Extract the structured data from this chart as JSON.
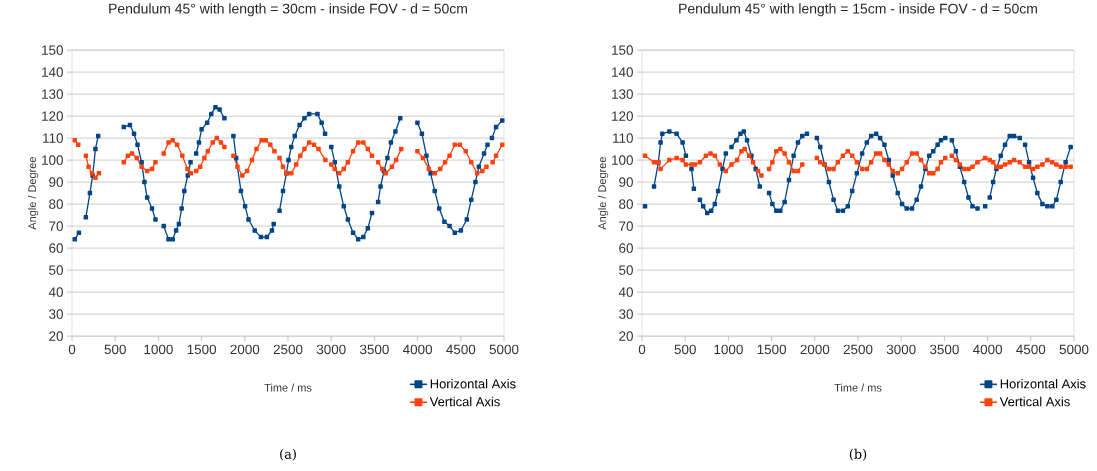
{
  "chart_data": [
    {
      "type": "line",
      "title": "Pendulum 45° with length = 30cm - inside FOV - d = 50cm",
      "xlabel": "Time / ms",
      "ylabel": "Angle / Degree",
      "xlim": [
        0,
        5000
      ],
      "ylim": [
        20,
        150
      ],
      "xticks": [
        0,
        500,
        1000,
        1500,
        2000,
        2500,
        3000,
        3500,
        4000,
        4500,
        5000
      ],
      "yticks": [
        20,
        30,
        40,
        50,
        60,
        70,
        80,
        90,
        100,
        110,
        120,
        130,
        140,
        150
      ],
      "grid": "y",
      "legend": "bottom right",
      "marker": "square",
      "line_style": "solid",
      "annotations": [
        "(a)"
      ],
      "series": [
        {
          "name": "Horizontal Axis",
          "color": "#004586",
          "x": [
            32,
            80,
            120,
            160,
            207,
            239,
            271,
            303,
            450,
            599,
            670,
            718,
            758,
            806,
            838,
            870,
            926,
            966,
            1010,
            1061,
            1117,
            1165,
            1205,
            1237,
            1269,
            1300,
            1340,
            1372,
            1405,
            1437,
            1469,
            1500,
            1564,
            1612,
            1660,
            1708,
            1764,
            1815,
            1868,
            1900,
            1955,
            2003,
            2043,
            2115,
            2187,
            2255,
            2314,
            2334,
            2370,
            2402,
            2442,
            2482,
            2506,
            2538,
            2578,
            2634,
            2690,
            2745,
            2841,
            2889,
            2929,
            2965,
            3001,
            3041,
            3093,
            3145,
            3193,
            3253,
            3312,
            3372,
            3424,
            3472,
            3510,
            3543,
            3571,
            3611,
            3651,
            3691,
            3743,
            3799,
            3900,
            3998,
            4050,
            4102,
            4150,
            4198,
            4250,
            4310,
            4370,
            4430,
            4501,
            4569,
            4621,
            4669,
            4709,
            4769,
            4809,
            4835,
            4860,
            4908,
            4980
          ],
          "values": [
            64,
            67,
            null,
            74,
            85,
            93,
            105,
            111,
            null,
            115,
            116,
            112,
            107,
            99,
            90,
            83,
            78,
            73,
            null,
            70,
            64,
            64,
            68,
            71,
            78,
            86,
            93,
            99,
            null,
            103,
            108,
            114,
            117,
            121,
            124,
            123,
            119,
            null,
            111,
            101,
            86,
            79,
            73,
            68,
            65,
            65,
            68,
            71,
            null,
            77,
            86,
            94,
            100,
            106,
            111,
            116,
            119,
            121,
            121,
            117,
            112,
            null,
            106,
            99,
            88,
            79,
            73,
            67,
            64,
            65,
            69,
            76,
            null,
            81,
            88,
            95,
            101,
            108,
            113,
            119,
            null,
            117,
            112,
            102,
            94,
            86,
            78,
            72,
            70,
            67,
            68,
            73,
            82,
            90,
            97,
            103,
            107,
            null,
            110,
            115,
            118
          ]
        },
        {
          "name": "Vertical Axis",
          "color": "#ff420e",
          "x": [
            32,
            72,
            115,
            160,
            192,
            231,
            271,
            311,
            450,
            599,
            647,
            694,
            750,
            806,
            870,
            926,
            966,
            1010,
            1061,
            1117,
            1165,
            1217,
            1277,
            1337,
            1376,
            1405,
            1437,
            1484,
            1532,
            1572,
            1628,
            1676,
            1724,
            1764,
            1815,
            1868,
            1915,
            1971,
            2027,
            2083,
            2135,
            2195,
            2243,
            2295,
            2343,
            2370,
            2402,
            2442,
            2482,
            2538,
            2594,
            2642,
            2690,
            2745,
            2801,
            2853,
            2933,
            2965,
            3001,
            3041,
            3093,
            3145,
            3193,
            3253,
            3312,
            3372,
            3424,
            3472,
            3510,
            3543,
            3591,
            3631,
            3703,
            3751,
            3811,
            3900,
            3998,
            4062,
            4130,
            4198,
            4262,
            4318,
            4370,
            4430,
            4489,
            4557,
            4621,
            4689,
            4749,
            4797,
            4835,
            4868,
            4908,
            4980
          ],
          "values": [
            109,
            107,
            null,
            102,
            97,
            94,
            92,
            94,
            null,
            99,
            102,
            103,
            101,
            97,
            95,
            96,
            99,
            null,
            103,
            108,
            109,
            107,
            102,
            96,
            94,
            null,
            95,
            97,
            101,
            104,
            108,
            110,
            108,
            106,
            null,
            102,
            97,
            93,
            95,
            100,
            105,
            109,
            109,
            107,
            104,
            null,
            101,
            97,
            94,
            94,
            98,
            102,
            105,
            108,
            107,
            105,
            100,
            null,
            98,
            96,
            94,
            96,
            99,
            104,
            108,
            108,
            105,
            102,
            null,
            99,
            96,
            94,
            97,
            100,
            105,
            null,
            104,
            101,
            96,
            94,
            96,
            99,
            102,
            107,
            107,
            104,
            99,
            94,
            95,
            97,
            null,
            99,
            102,
            107
          ]
        }
      ]
    },
    {
      "type": "line",
      "title": "Pendulum 45° with length = 15cm - inside FOV - d = 50cm",
      "xlabel": "Time / ms",
      "ylabel": "Angle / Degree",
      "xlim": [
        0,
        5000
      ],
      "ylim": [
        20,
        150
      ],
      "xticks": [
        0,
        500,
        1000,
        1500,
        2000,
        2500,
        3000,
        3500,
        4000,
        4500,
        5000
      ],
      "yticks": [
        20,
        30,
        40,
        50,
        60,
        70,
        80,
        90,
        100,
        110,
        120,
        130,
        140,
        150
      ],
      "grid": "y",
      "legend": "bottom right",
      "marker": "square",
      "line_style": "solid",
      "annotations": [
        "(b)"
      ],
      "series": [
        {
          "name": "Horizontal Axis",
          "color": "#004586",
          "x": [
            35,
            90,
            139,
            189,
            215,
            235,
            316,
            400,
            470,
            508,
            540,
            573,
            600,
            635,
            670,
            708,
            755,
            801,
            843,
            881,
            932,
            970,
            1000,
            1036,
            1093,
            1139,
            1178,
            1216,
            1266,
            1316,
            1363,
            1420,
            1471,
            1509,
            1555,
            1601,
            1651,
            1701,
            1755,
            1805,
            1855,
            1909,
            1970,
            2024,
            2063,
            2113,
            2163,
            2217,
            2267,
            2325,
            2382,
            2433,
            2487,
            2548,
            2602,
            2652,
            2710,
            2756,
            2806,
            2856,
            2902,
            2960,
            3010,
            3064,
            3125,
            3179,
            3229,
            3279,
            3325,
            3371,
            3421,
            3460,
            3510,
            3550,
            3587,
            3633,
            3679,
            3729,
            3779,
            3825,
            3883,
            3930,
            3972,
            4000,
            4025,
            4064,
            4102,
            4152,
            4202,
            4256,
            4306,
            4372,
            4400,
            4434,
            4480,
            4526,
            4576,
            4634,
            4692,
            4749,
            4796,
            4846,
            4903,
            4961
          ],
          "values": [
            79,
            null,
            88,
            99,
            108,
            112,
            113,
            112,
            108,
            102,
            null,
            96,
            87,
            null,
            82,
            79,
            76,
            77,
            80,
            86,
            96,
            103,
            null,
            106,
            109,
            112,
            113,
            109,
            102,
            96,
            88,
            null,
            85,
            80,
            77,
            77,
            81,
            91,
            102,
            108,
            111,
            112,
            null,
            110,
            106,
            98,
            90,
            82,
            77,
            77,
            79,
            86,
            94,
            103,
            108,
            111,
            112,
            110,
            107,
            100,
            93,
            85,
            80,
            78,
            78,
            82,
            88,
            96,
            102,
            104,
            107,
            109,
            110,
            null,
            109,
            104,
            97,
            90,
            83,
            79,
            78,
            null,
            79,
            null,
            83,
            90,
            96,
            102,
            107,
            111,
            111,
            110,
            null,
            107,
            99,
            92,
            85,
            80,
            79,
            79,
            82,
            90,
            99,
            106
          ]
        },
        {
          "name": "Vertical Axis",
          "color": "#ff420e",
          "x": [
            35,
            139,
            189,
            215,
            316,
            400,
            470,
            508,
            573,
            612,
            670,
            739,
            793,
            843,
            901,
            970,
            1036,
            1101,
            1151,
            1189,
            1239,
            1285,
            1343,
            1382,
            1420,
            1471,
            1509,
            1555,
            1601,
            1651,
            1701,
            1755,
            1805,
            1855,
            1940,
            2024,
            2063,
            2113,
            2163,
            2217,
            2267,
            2325,
            2382,
            2433,
            2487,
            2548,
            2602,
            2652,
            2710,
            2756,
            2806,
            2856,
            2902,
            2960,
            3010,
            3064,
            3125,
            3179,
            3229,
            3279,
            3325,
            3371,
            3421,
            3460,
            3510,
            3550,
            3587,
            3633,
            3679,
            3729,
            3779,
            3825,
            3883,
            3972,
            4025,
            4064,
            4102,
            4152,
            4202,
            4256,
            4306,
            4372,
            4434,
            4480,
            4526,
            4576,
            4634,
            4692,
            4749,
            4796,
            4846,
            4903,
            4961
          ],
          "values": [
            102,
            99,
            99,
            96,
            100,
            101,
            100,
            98,
            98,
            98,
            99,
            102,
            103,
            102,
            98,
            95,
            98,
            100,
            104,
            105,
            102,
            99,
            95,
            93,
            null,
            96,
            99,
            104,
            105,
            103,
            99,
            95,
            95,
            98,
            null,
            101,
            99,
            98,
            96,
            96,
            99,
            102,
            104,
            102,
            99,
            96,
            96,
            99,
            103,
            103,
            100,
            98,
            95,
            94,
            96,
            99,
            103,
            103,
            100,
            97,
            94,
            94,
            96,
            99,
            101,
            null,
            102,
            100,
            98,
            96,
            96,
            97,
            99,
            101,
            100,
            99,
            97,
            97,
            98,
            99,
            100,
            99,
            97,
            97,
            96,
            97,
            98,
            100,
            99,
            98,
            97,
            97,
            97
          ]
        }
      ]
    }
  ]
}
